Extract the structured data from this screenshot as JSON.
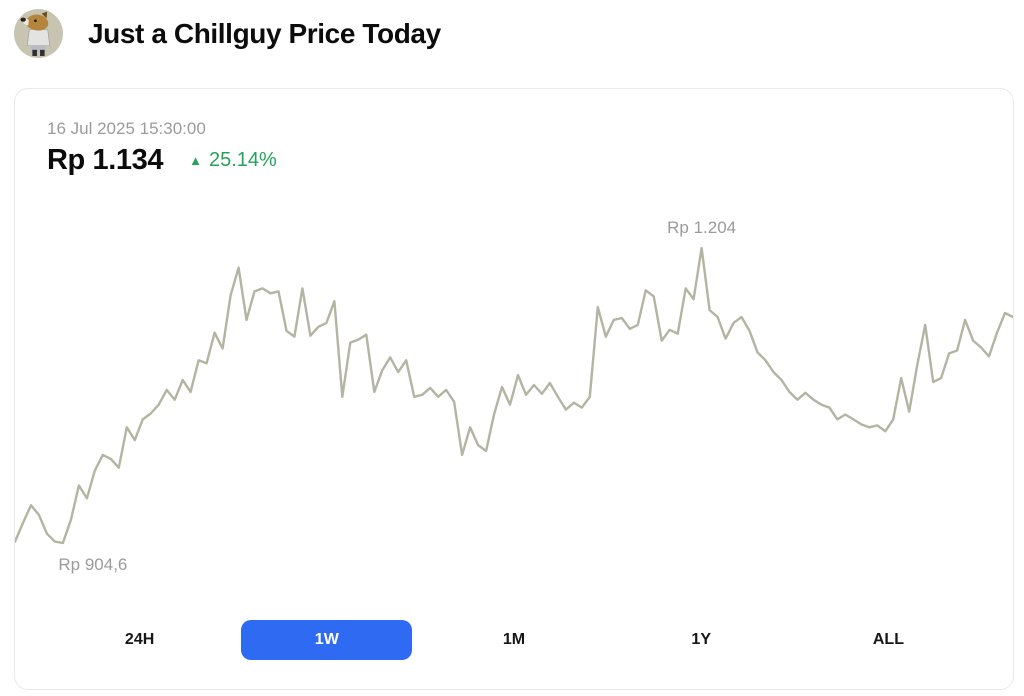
{
  "header": {
    "title": "Just a Chillguy Price Today"
  },
  "price_card": {
    "timestamp": "16 Jul 2025 15:30:00",
    "price": "Rp 1.134",
    "change_percent": "25.14%",
    "change_direction": "up",
    "up_arrow_glyph": "▲",
    "high_annotation": "Rp 1.204",
    "low_annotation": "Rp 904,6"
  },
  "ranges": [
    {
      "label": "24H",
      "selected": false
    },
    {
      "label": "1W",
      "selected": true
    },
    {
      "label": "1M",
      "selected": false
    },
    {
      "label": "1Y",
      "selected": false
    },
    {
      "label": "ALL",
      "selected": false
    }
  ],
  "colors": {
    "accent_blue": "#2f6bf2",
    "positive_green": "#26a35a",
    "chart_line": "#b4b4a2",
    "muted_text": "#9b9b9b",
    "avatar_bg": "#c7c5b2"
  },
  "chart_data": {
    "type": "line",
    "title": "Just a Chillguy price (IDR), 1W range",
    "currency": "Rp",
    "selected_range": "1W",
    "current_price": 1134,
    "change_percent": 25.14,
    "high": {
      "label": "Rp 1.204",
      "value": 1204
    },
    "low": {
      "label": "Rp 904,6",
      "value": 904.6
    },
    "y_range": [
      904.6,
      1204
    ],
    "grid": false,
    "legend": false,
    "prices": [
      906,
      925,
      943,
      933,
      914,
      906,
      904.6,
      928,
      963,
      950,
      978,
      994,
      990,
      981,
      1022,
      1009,
      1030,
      1036,
      1045,
      1060,
      1050,
      1070,
      1058,
      1090,
      1087,
      1118,
      1102,
      1156,
      1184,
      1131,
      1160,
      1163,
      1158,
      1160,
      1120,
      1114,
      1163,
      1115,
      1124,
      1128,
      1150,
      1053,
      1108,
      1111,
      1116,
      1058,
      1080,
      1093,
      1078,
      1090,
      1053,
      1055,
      1062,
      1053,
      1060,
      1048,
      994,
      1022,
      1004,
      998,
      1035,
      1063,
      1045,
      1075,
      1055,
      1065,
      1056,
      1067,
      1053,
      1040,
      1047,
      1042,
      1053,
      1144,
      1114,
      1131,
      1133,
      1122,
      1126,
      1161,
      1155,
      1110,
      1121,
      1117,
      1163,
      1152,
      1204,
      1141,
      1134,
      1112,
      1128,
      1134,
      1120,
      1098,
      1090,
      1078,
      1070,
      1058,
      1050,
      1057,
      1050,
      1045,
      1042,
      1030,
      1035,
      1030,
      1025,
      1022,
      1024,
      1018,
      1030,
      1072,
      1038,
      1085,
      1126,
      1068,
      1072,
      1097,
      1100,
      1131,
      1110,
      1103,
      1094,
      1118,
      1138,
      1134
    ]
  }
}
